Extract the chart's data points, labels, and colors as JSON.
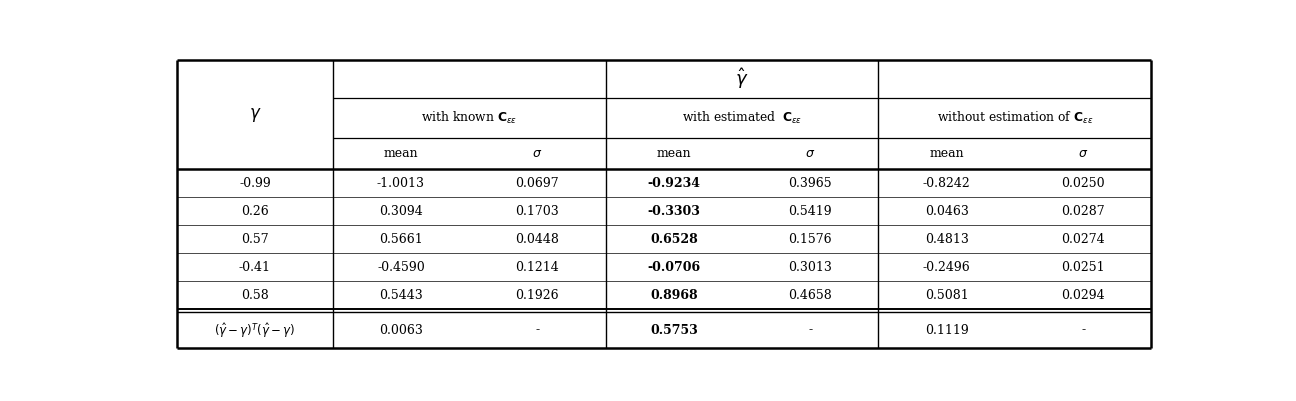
{
  "gamma_hat_label": "$\\hat{\\gamma}$",
  "gamma_label": "$\\gamma$",
  "col_group_headers": [
    "with known $\\mathbf{C}_{\\varepsilon\\varepsilon}$",
    "with estimated  $\\mathbf{C}_{\\varepsilon\\varepsilon}$",
    "without estimation of $\\mathbf{C}_{\\varepsilon\\varepsilon}$"
  ],
  "sub_headers": [
    "mean",
    "$\\sigma$",
    "mean",
    "$\\sigma$",
    "mean",
    "$\\sigma$"
  ],
  "gamma_values": [
    "-0.99",
    "0.26",
    "0.57",
    "-0.41",
    "0.58"
  ],
  "data_rows": [
    [
      "-1.0013",
      "0.0697",
      "-0.9234",
      "0.3965",
      "-0.8242",
      "0.0250"
    ],
    [
      "0.3094",
      "0.1703",
      "-0.3303",
      "0.5419",
      "0.0463",
      "0.0287"
    ],
    [
      "0.5661",
      "0.0448",
      "0.6528",
      "0.1576",
      "0.4813",
      "0.0274"
    ],
    [
      "-0.4590",
      "0.1214",
      "-0.0706",
      "0.3013",
      "-0.2496",
      "0.0251"
    ],
    [
      "0.5443",
      "0.1926",
      "0.8968",
      "0.4658",
      "0.5081",
      "0.0294"
    ]
  ],
  "bold_data_cols": [
    2
  ],
  "footer_row_label": "$(\\hat{\\gamma} - \\gamma)^T(\\hat{\\gamma} - \\gamma)$",
  "footer_values": [
    "0.0063",
    "-",
    "0.5753",
    "-",
    "0.1119",
    "-"
  ],
  "footer_bold_cols": [
    2
  ]
}
